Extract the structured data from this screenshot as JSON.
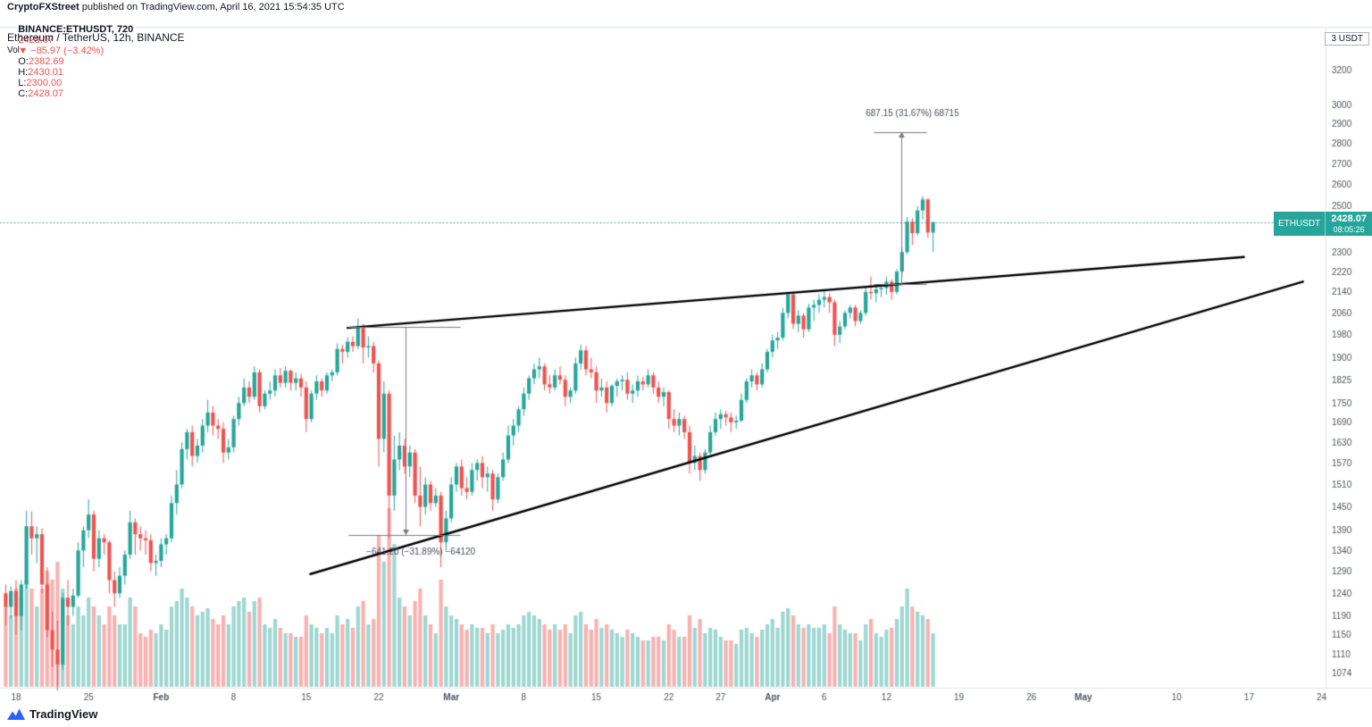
{
  "header": {
    "publisher": "CryptoFXStreet",
    "published_suffix": " published on TradingView.com, April 16, 2021 15:54:35 UTC",
    "symbol_line": {
      "symbol": "BINANCE:ETHUSDT, 720",
      "price": "2428.07",
      "change": "▼ −85.97 (−3.42%)",
      "o_label": "O:",
      "o": "2382.69",
      "h_label": "H:",
      "h": "2430.01",
      "l_label": "L:",
      "l": "2300.00",
      "c_label": "C:",
      "c": "2428.07"
    }
  },
  "legend": {
    "series": "Ethereum / TetherUS, 12h, BINANCE",
    "volume": "Vol"
  },
  "axis_unit": "3 USDT",
  "price_tag": {
    "symbol": "ETHUSDT",
    "price": "2428.07",
    "countdown": "08:05:26"
  },
  "footer": {
    "logo_text": "TradingView"
  },
  "chart_data": {
    "type": "candlestick",
    "title": "Ethereum / TetherUS, 12h, BINANCE",
    "symbol": "ETHUSDT",
    "exchange": "BINANCE",
    "interval": "12h",
    "scale": "log",
    "current_price": 2428.07,
    "visible_price_range": [
      1045,
      3460
    ],
    "price_scale": {
      "type": "log",
      "ref_price": 3200
    },
    "price_ticks": [
      3200,
      3000,
      2900,
      2800,
      2700,
      2600,
      2500,
      2300,
      2220,
      2140,
      2060,
      1980,
      1900,
      1825,
      1750,
      1690,
      1630,
      1570,
      1510,
      1450,
      1390,
      1340,
      1290,
      1240,
      1190,
      1150,
      1110,
      1074
    ],
    "time_ticks": [
      {
        "label": "18",
        "day": 0
      },
      {
        "label": "25",
        "day": 7
      },
      {
        "label": "Feb",
        "day": 14,
        "major": true
      },
      {
        "label": "8",
        "day": 21
      },
      {
        "label": "15",
        "day": 28
      },
      {
        "label": "22",
        "day": 35
      },
      {
        "label": "Mar",
        "day": 42,
        "major": true
      },
      {
        "label": "8",
        "day": 49
      },
      {
        "label": "15",
        "day": 56
      },
      {
        "label": "22",
        "day": 63
      },
      {
        "label": "27",
        "day": 68
      },
      {
        "label": "Apr",
        "day": 73,
        "major": true
      },
      {
        "label": "6",
        "day": 78
      },
      {
        "label": "12",
        "day": 84
      },
      {
        "label": "19",
        "day": 91
      },
      {
        "label": "26",
        "day": 98
      },
      {
        "label": "May",
        "day": 103,
        "major": true
      },
      {
        "label": "10",
        "day": 112
      },
      {
        "label": "17",
        "day": 119
      },
      {
        "label": "24",
        "day": 126
      }
    ],
    "start_date": "2021-01-17",
    "first_candle_day": -1,
    "candles": [
      [
        1240,
        1260,
        1170,
        1210,
        45
      ],
      [
        1210,
        1255,
        1185,
        1245,
        40
      ],
      [
        1245,
        1270,
        1150,
        1190,
        55
      ],
      [
        1190,
        1270,
        1160,
        1260,
        50
      ],
      [
        1260,
        1440,
        1250,
        1400,
        60
      ],
      [
        1400,
        1438,
        1330,
        1370,
        55
      ],
      [
        1370,
        1400,
        1310,
        1380,
        45
      ],
      [
        1380,
        1395,
        1240,
        1260,
        55
      ],
      [
        1260,
        1300,
        1145,
        1160,
        65
      ],
      [
        1160,
        1200,
        1085,
        1120,
        60
      ],
      [
        1120,
        1180,
        1040,
        1090,
        70
      ],
      [
        1090,
        1240,
        1080,
        1230,
        55
      ],
      [
        1230,
        1270,
        1170,
        1210,
        40
      ],
      [
        1210,
        1250,
        1190,
        1235,
        35
      ],
      [
        1235,
        1360,
        1230,
        1340,
        45
      ],
      [
        1340,
        1400,
        1300,
        1390,
        40
      ],
      [
        1390,
        1470,
        1370,
        1430,
        50
      ],
      [
        1430,
        1440,
        1290,
        1320,
        45
      ],
      [
        1320,
        1390,
        1300,
        1370,
        40
      ],
      [
        1370,
        1380,
        1330,
        1360,
        35
      ],
      [
        1360,
        1365,
        1240,
        1270,
        45
      ],
      [
        1270,
        1290,
        1210,
        1240,
        40
      ],
      [
        1240,
        1300,
        1230,
        1280,
        35
      ],
      [
        1280,
        1340,
        1260,
        1330,
        35
      ],
      [
        1330,
        1440,
        1320,
        1410,
        50
      ],
      [
        1410,
        1420,
        1330,
        1380,
        45
      ],
      [
        1380,
        1400,
        1340,
        1370,
        30
      ],
      [
        1370,
        1390,
        1330,
        1365,
        28
      ],
      [
        1365,
        1380,
        1290,
        1310,
        32
      ],
      [
        1310,
        1330,
        1280,
        1315,
        30
      ],
      [
        1315,
        1370,
        1300,
        1355,
        35
      ],
      [
        1355,
        1380,
        1330,
        1370,
        32
      ],
      [
        1370,
        1480,
        1360,
        1460,
        45
      ],
      [
        1460,
        1550,
        1430,
        1510,
        48
      ],
      [
        1510,
        1630,
        1500,
        1610,
        55
      ],
      [
        1610,
        1670,
        1580,
        1660,
        50
      ],
      [
        1660,
        1680,
        1560,
        1590,
        45
      ],
      [
        1590,
        1640,
        1570,
        1620,
        40
      ],
      [
        1620,
        1700,
        1600,
        1680,
        42
      ],
      [
        1680,
        1760,
        1660,
        1720,
        44
      ],
      [
        1720,
        1740,
        1650,
        1680,
        38
      ],
      [
        1680,
        1700,
        1640,
        1670,
        35
      ],
      [
        1670,
        1690,
        1570,
        1600,
        40
      ],
      [
        1600,
        1640,
        1580,
        1615,
        35
      ],
      [
        1615,
        1710,
        1600,
        1700,
        45
      ],
      [
        1700,
        1770,
        1680,
        1750,
        48
      ],
      [
        1750,
        1830,
        1740,
        1800,
        50
      ],
      [
        1800,
        1820,
        1750,
        1770,
        42
      ],
      [
        1770,
        1870,
        1760,
        1850,
        48
      ],
      [
        1850,
        1860,
        1720,
        1740,
        50
      ],
      [
        1740,
        1790,
        1730,
        1780,
        35
      ],
      [
        1780,
        1820,
        1760,
        1790,
        33
      ],
      [
        1790,
        1860,
        1770,
        1840,
        38
      ],
      [
        1840,
        1865,
        1800,
        1815,
        33
      ],
      [
        1815,
        1870,
        1800,
        1855,
        30
      ],
      [
        1855,
        1860,
        1790,
        1815,
        30
      ],
      [
        1815,
        1850,
        1790,
        1830,
        28
      ],
      [
        1830,
        1845,
        1770,
        1800,
        28
      ],
      [
        1800,
        1820,
        1660,
        1700,
        40
      ],
      [
        1700,
        1790,
        1690,
        1780,
        35
      ],
      [
        1780,
        1840,
        1760,
        1820,
        33
      ],
      [
        1820,
        1830,
        1770,
        1790,
        30
      ],
      [
        1790,
        1850,
        1780,
        1840,
        33
      ],
      [
        1840,
        1860,
        1820,
        1850,
        30
      ],
      [
        1850,
        1950,
        1840,
        1930,
        40
      ],
      [
        1930,
        1945,
        1880,
        1920,
        35
      ],
      [
        1920,
        1970,
        1900,
        1955,
        38
      ],
      [
        1955,
        1975,
        1920,
        1940,
        33
      ],
      [
        1940,
        2040,
        1930,
        2010,
        45
      ],
      [
        2010,
        2020,
        1880,
        1935,
        48
      ],
      [
        1935,
        1975,
        1900,
        1940,
        35
      ],
      [
        1940,
        1955,
        1850,
        1880,
        38
      ],
      [
        1880,
        1890,
        1560,
        1640,
        85
      ],
      [
        1640,
        1820,
        1600,
        1780,
        70
      ],
      [
        1780,
        1790,
        1370,
        1480,
        100
      ],
      [
        1480,
        1650,
        1440,
        1580,
        80
      ],
      [
        1580,
        1660,
        1550,
        1620,
        50
      ],
      [
        1620,
        1640,
        1540,
        1560,
        45
      ],
      [
        1560,
        1620,
        1530,
        1600,
        40
      ],
      [
        1600,
        1610,
        1460,
        1480,
        48
      ],
      [
        1480,
        1560,
        1400,
        1450,
        55
      ],
      [
        1450,
        1530,
        1430,
        1510,
        40
      ],
      [
        1510,
        1520,
        1440,
        1460,
        35
      ],
      [
        1460,
        1500,
        1450,
        1480,
        30
      ],
      [
        1480,
        1490,
        1300,
        1360,
        60
      ],
      [
        1360,
        1440,
        1340,
        1420,
        45
      ],
      [
        1420,
        1530,
        1410,
        1510,
        40
      ],
      [
        1510,
        1570,
        1490,
        1560,
        38
      ],
      [
        1560,
        1580,
        1480,
        1500,
        35
      ],
      [
        1500,
        1530,
        1470,
        1490,
        32
      ],
      [
        1490,
        1570,
        1480,
        1550,
        35
      ],
      [
        1550,
        1580,
        1520,
        1570,
        33
      ],
      [
        1570,
        1590,
        1500,
        1530,
        33
      ],
      [
        1530,
        1560,
        1490,
        1540,
        30
      ],
      [
        1540,
        1550,
        1440,
        1470,
        35
      ],
      [
        1470,
        1540,
        1460,
        1530,
        30
      ],
      [
        1530,
        1600,
        1520,
        1580,
        32
      ],
      [
        1580,
        1680,
        1570,
        1650,
        35
      ],
      [
        1650,
        1700,
        1620,
        1680,
        33
      ],
      [
        1680,
        1740,
        1660,
        1730,
        35
      ],
      [
        1730,
        1800,
        1710,
        1780,
        40
      ],
      [
        1780,
        1840,
        1760,
        1830,
        42
      ],
      [
        1830,
        1880,
        1810,
        1860,
        40
      ],
      [
        1860,
        1900,
        1830,
        1870,
        38
      ],
      [
        1870,
        1880,
        1790,
        1810,
        35
      ],
      [
        1810,
        1840,
        1780,
        1800,
        32
      ],
      [
        1800,
        1860,
        1790,
        1840,
        35
      ],
      [
        1840,
        1870,
        1810,
        1825,
        32
      ],
      [
        1825,
        1840,
        1740,
        1770,
        35
      ],
      [
        1770,
        1800,
        1750,
        1790,
        30
      ],
      [
        1790,
        1900,
        1780,
        1880,
        40
      ],
      [
        1880,
        1945,
        1860,
        1925,
        42
      ],
      [
        1925,
        1940,
        1840,
        1860,
        35
      ],
      [
        1860,
        1900,
        1830,
        1850,
        32
      ],
      [
        1850,
        1870,
        1750,
        1790,
        38
      ],
      [
        1790,
        1830,
        1770,
        1800,
        33
      ],
      [
        1800,
        1820,
        1720,
        1750,
        35
      ],
      [
        1750,
        1810,
        1740,
        1805,
        32
      ],
      [
        1805,
        1830,
        1770,
        1820,
        30
      ],
      [
        1820,
        1840,
        1790,
        1825,
        28
      ],
      [
        1825,
        1850,
        1760,
        1780,
        32
      ],
      [
        1780,
        1810,
        1750,
        1790,
        30
      ],
      [
        1790,
        1840,
        1770,
        1820,
        28
      ],
      [
        1820,
        1835,
        1790,
        1810,
        26
      ],
      [
        1810,
        1860,
        1800,
        1840,
        26
      ],
      [
        1840,
        1850,
        1780,
        1800,
        28
      ],
      [
        1800,
        1820,
        1750,
        1770,
        28
      ],
      [
        1770,
        1800,
        1740,
        1785,
        26
      ],
      [
        1785,
        1790,
        1670,
        1700,
        35
      ],
      [
        1700,
        1730,
        1660,
        1680,
        32
      ],
      [
        1680,
        1720,
        1650,
        1700,
        28
      ],
      [
        1700,
        1710,
        1640,
        1660,
        28
      ],
      [
        1660,
        1680,
        1540,
        1570,
        40
      ],
      [
        1570,
        1620,
        1550,
        1590,
        33
      ],
      [
        1590,
        1600,
        1520,
        1550,
        38
      ],
      [
        1550,
        1610,
        1540,
        1600,
        30
      ],
      [
        1600,
        1680,
        1590,
        1660,
        33
      ],
      [
        1660,
        1720,
        1650,
        1700,
        32
      ],
      [
        1700,
        1730,
        1670,
        1715,
        28
      ],
      [
        1715,
        1725,
        1680,
        1705,
        26
      ],
      [
        1705,
        1720,
        1660,
        1690,
        26
      ],
      [
        1690,
        1710,
        1670,
        1695,
        24
      ],
      [
        1695,
        1780,
        1690,
        1760,
        32
      ],
      [
        1760,
        1830,
        1750,
        1820,
        33
      ],
      [
        1820,
        1860,
        1800,
        1840,
        30
      ],
      [
        1840,
        1850,
        1790,
        1810,
        28
      ],
      [
        1810,
        1880,
        1800,
        1860,
        32
      ],
      [
        1860,
        1930,
        1850,
        1920,
        35
      ],
      [
        1920,
        1980,
        1900,
        1960,
        38
      ],
      [
        1960,
        1990,
        1930,
        1970,
        33
      ],
      [
        1970,
        2080,
        1960,
        2060,
        42
      ],
      [
        2060,
        2140,
        2040,
        2130,
        44
      ],
      [
        2130,
        2140,
        2000,
        2020,
        40
      ],
      [
        2020,
        2070,
        1990,
        2050,
        35
      ],
      [
        2050,
        2060,
        1970,
        2000,
        33
      ],
      [
        2000,
        2095,
        1990,
        2080,
        35
      ],
      [
        2080,
        2110,
        2030,
        2090,
        33
      ],
      [
        2090,
        2130,
        2060,
        2110,
        33
      ],
      [
        2110,
        2150,
        2080,
        2120,
        35
      ],
      [
        2120,
        2135,
        2060,
        2100,
        30
      ],
      [
        2100,
        2110,
        1940,
        1980,
        45
      ],
      [
        1980,
        2030,
        1950,
        2010,
        35
      ],
      [
        2010,
        2070,
        2000,
        2060,
        32
      ],
      [
        2060,
        2090,
        2040,
        2080,
        30
      ],
      [
        2080,
        2090,
        2010,
        2030,
        30
      ],
      [
        2030,
        2070,
        2020,
        2060,
        26
      ],
      [
        2060,
        2160,
        2050,
        2140,
        35
      ],
      [
        2140,
        2200,
        2110,
        2135,
        38
      ],
      [
        2135,
        2170,
        2100,
        2150,
        30
      ],
      [
        2150,
        2165,
        2120,
        2155,
        28
      ],
      [
        2155,
        2200,
        2130,
        2180,
        32
      ],
      [
        2180,
        2190,
        2110,
        2140,
        33
      ],
      [
        2140,
        2230,
        2130,
        2220,
        38
      ],
      [
        2220,
        2320,
        2200,
        2300,
        45
      ],
      [
        2300,
        2450,
        2290,
        2430,
        55
      ],
      [
        2430,
        2445,
        2330,
        2380,
        45
      ],
      [
        2380,
        2500,
        2370,
        2480,
        42
      ],
      [
        2480,
        2545,
        2440,
        2530,
        40
      ],
      [
        2530,
        2535,
        2360,
        2383,
        38
      ],
      [
        2382.69,
        2430.01,
        2300,
        2428.07,
        30
      ]
    ],
    "trendlines": [
      {
        "from": {
          "day": 32,
          "price": 2005
        },
        "to": {
          "day": 118.5,
          "price": 2280
        }
      },
      {
        "from": {
          "day": 28.4,
          "price": 1284
        },
        "to": {
          "day": 124.2,
          "price": 2180
        }
      }
    ],
    "measurements": [
      {
        "label": "−641.20 (−31.89%) −64120",
        "day": 37.6,
        "from_price": 2008,
        "to_price": 1378,
        "cap_from_day": 32.1,
        "cap_to_day": 42.9,
        "label_day": 33.8,
        "label_price": 1330
      },
      {
        "label": "687.15 (31.67%) 68715",
        "day": 85.4,
        "from_price": 2170,
        "to_price": 2857,
        "cap_from_day": 82.8,
        "cap_to_day": 87.9,
        "label_day": 82,
        "label_price": 2940
      }
    ],
    "colors": {
      "up": "#26a69a",
      "down": "#ef5350",
      "volume_up": "rgba(38,166,154,0.45)",
      "volume_down": "rgba(239,83,80,0.45)",
      "trendline": "#000000",
      "measure": "#787b86",
      "axis_text": "#50535e",
      "grid_border": "#e0e3eb",
      "last_price_line": "#26a69a"
    }
  }
}
